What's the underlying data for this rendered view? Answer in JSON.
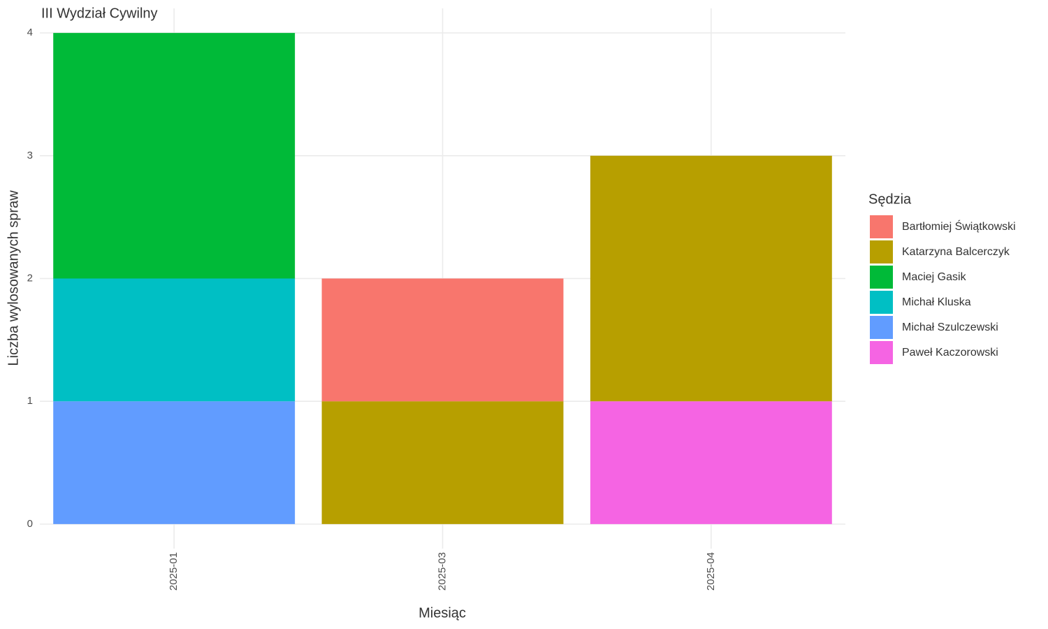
{
  "chart_data": {
    "type": "stacked_bar",
    "title": "III Wydział Cywilny",
    "x_label": "Miesiąc",
    "y_label": "Liczba wylosowanych spraw",
    "legend_title": "Sędzia",
    "legend_position": "right",
    "categories": [
      "2025-01",
      "2025-03",
      "2025-04"
    ],
    "series": [
      {
        "name": "Bartłomiej Świątkowski",
        "color": "#F8766D",
        "values": [
          null,
          1,
          null
        ]
      },
      {
        "name": "Katarzyna Balcerczyk",
        "color": "#B79F00",
        "values": [
          null,
          1,
          2
        ]
      },
      {
        "name": "Maciej Gasik",
        "color": "#00BA38",
        "values": [
          2,
          null,
          null
        ]
      },
      {
        "name": "Michał Kluska",
        "color": "#00BFC4",
        "values": [
          1,
          null,
          null
        ]
      },
      {
        "name": "Michał Szulczewski",
        "color": "#619CFF",
        "values": [
          1,
          null,
          null
        ]
      },
      {
        "name": "Paweł Kaczorowski",
        "color": "#F564E3",
        "values": [
          null,
          null,
          1
        ]
      }
    ],
    "ylim": [
      -0.2,
      4.2
    ],
    "yticks": [
      0,
      1,
      2,
      3,
      4
    ],
    "grid": true
  }
}
